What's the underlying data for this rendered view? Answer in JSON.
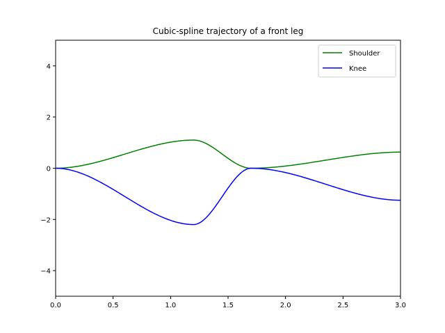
{
  "chart_data": {
    "type": "line",
    "title": "Cubic-spline trajectory of a front leg",
    "xlabel": "",
    "ylabel": "",
    "xlim": [
      0,
      3
    ],
    "ylim": [
      -5,
      5
    ],
    "xticks": [
      0,
      0.5,
      1,
      1.5,
      2,
      2.5,
      3
    ],
    "xtick_labels": [
      "0.0",
      "0.5",
      "1.0",
      "1.5",
      "2.0",
      "2.5",
      "3.0"
    ],
    "yticks": [
      -4,
      -2,
      0,
      2,
      4
    ],
    "ytick_labels": [
      "−4",
      "−2",
      "0",
      "2",
      "4"
    ],
    "grid": false,
    "legend_position": "top-right",
    "series": [
      {
        "name": "Shoulder",
        "color": "#008000",
        "knots": {
          "x": [
            0,
            1.2,
            1.7,
            3.0
          ],
          "y": [
            0,
            1.1,
            0,
            0.63
          ]
        }
      },
      {
        "name": "Knee",
        "color": "#0000ff",
        "knots": {
          "x": [
            0,
            1.2,
            1.7,
            3.0
          ],
          "y": [
            0,
            -2.2,
            0,
            -1.25
          ]
        }
      }
    ]
  }
}
